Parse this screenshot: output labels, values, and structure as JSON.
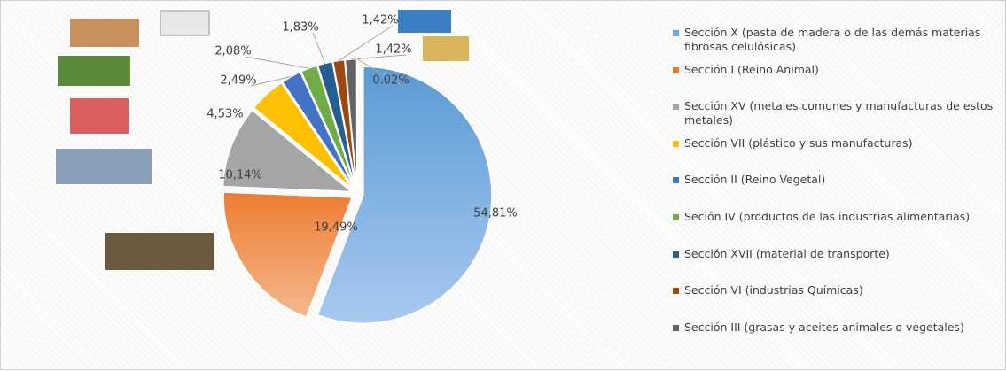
{
  "chart_data": {
    "type": "pie",
    "categories": [
      "Sección X (pasta de madera o de las demás materias fibrosas celulósicas)",
      "Sección I (Reino Animal)",
      "Sección XV (metales comunes y manufacturas de estos metales)",
      "Sección VII (plástico y sus manufacturas)",
      "Sección II (Reino Vegetal)",
      "Seción IV (productos de las industrias alimentarias)",
      "Sección XVII (material de transporte)",
      "Sección VI (industrias Químicas)",
      "Sección III (grasas y aceites animales o vegetales)",
      null
    ],
    "values": [
      54.81,
      19.49,
      10.14,
      4.53,
      2.49,
      2.08,
      1.83,
      1.42,
      1.42,
      0.02
    ],
    "value_labels": [
      "54,81%",
      "19,49%",
      "10,14%",
      "4,53%",
      "2,49%",
      "2,08%",
      "1,83%",
      "1,42%",
      "1,42%",
      "0.02%"
    ],
    "colors": [
      "#6fa8dc",
      "#ed7d31",
      "#a5a5a5",
      "#ffc000",
      "#4472c4",
      "#70ad47",
      "#255e91",
      "#9e480e",
      "#636363",
      "#997300"
    ],
    "legend": "right"
  }
}
